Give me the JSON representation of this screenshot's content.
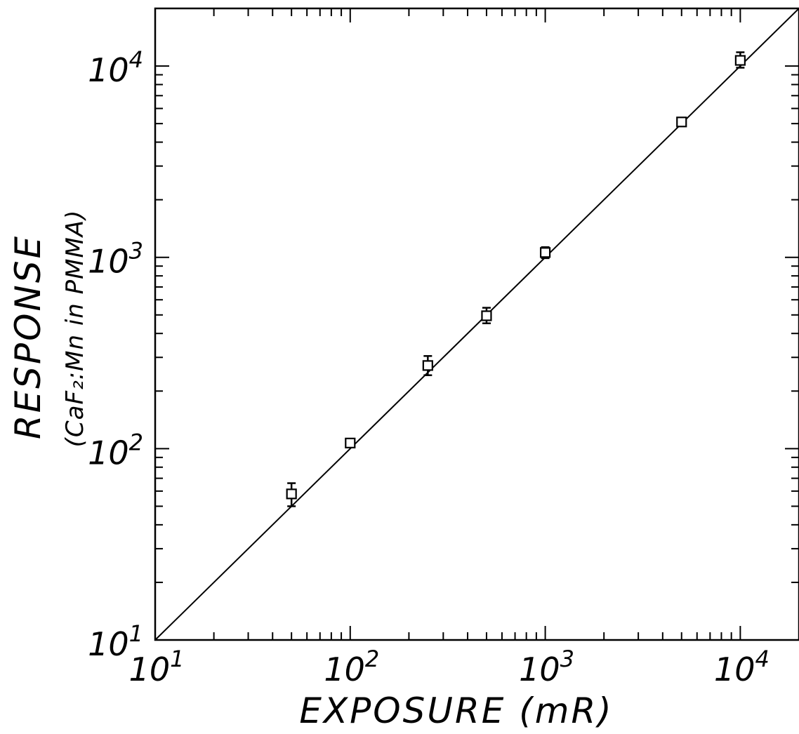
{
  "chart_data": {
    "type": "scatter",
    "title": "",
    "xlabel": "EXPOSURE (mR)",
    "ylabel": "RESPONSE",
    "ylabel_sub": "(CaF₂:Mn in PMMA)",
    "x_scale": "log",
    "y_scale": "log",
    "xlim": [
      10,
      20000
    ],
    "ylim": [
      10,
      20000
    ],
    "x_ticks": [
      {
        "value": 10,
        "base": "10",
        "exp": "1"
      },
      {
        "value": 100,
        "base": "10",
        "exp": "2"
      },
      {
        "value": 1000,
        "base": "10",
        "exp": "3"
      },
      {
        "value": 10000,
        "base": "10",
        "exp": "4"
      }
    ],
    "y_ticks": [
      {
        "value": 10,
        "base": "10",
        "exp": "1"
      },
      {
        "value": 100,
        "base": "10",
        "exp": "2"
      },
      {
        "value": 1000,
        "base": "10",
        "exp": "3"
      },
      {
        "value": 10000,
        "base": "10",
        "exp": "4"
      }
    ],
    "grid": false,
    "legend": "none",
    "series": [
      {
        "marker": "open-square",
        "x": [
          50,
          100,
          250,
          500,
          1000,
          5000,
          10000
        ],
        "y": [
          58,
          107,
          272,
          495,
          1060,
          5100,
          10700
        ],
        "y_low": [
          50,
          104,
          242,
          452,
          990,
          4980,
          9800
        ],
        "y_high": [
          66,
          111,
          305,
          545,
          1130,
          5220,
          11800
        ]
      },
      {
        "style": "line",
        "x": [
          10,
          20000
        ],
        "y": [
          10,
          20000
        ]
      }
    ]
  }
}
